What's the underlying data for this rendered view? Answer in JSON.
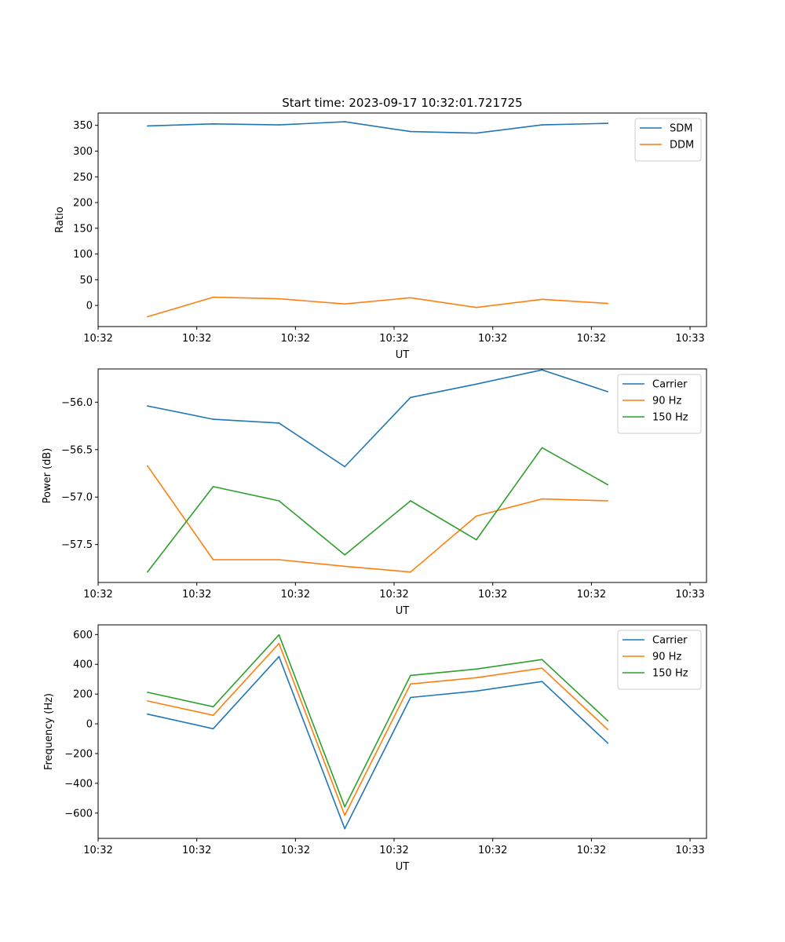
{
  "chart_data": [
    {
      "type": "line",
      "title": "Start time: 2023-09-17 10:32:01.721725",
      "xlabel": "UT",
      "ylabel": "Ratio",
      "xlim": [
        0,
        9.25
      ],
      "ylim": [
        -41,
        374
      ],
      "yticks": [
        0,
        50,
        100,
        150,
        200,
        250,
        300,
        350
      ],
      "xticks": [
        0,
        1.5,
        3,
        4.5,
        6,
        7.5,
        9
      ],
      "xtick_labels": [
        "10:32",
        "10:32",
        "10:32",
        "10:32",
        "10:32",
        "10:32",
        "10:33"
      ],
      "x": [
        0.75,
        1.75,
        2.75,
        3.75,
        4.75,
        5.75,
        6.75,
        7.75
      ],
      "legend_position": "upper right",
      "series": [
        {
          "name": "SDM",
          "color": "#1f77b4",
          "values": [
            349,
            353,
            351,
            357,
            338,
            335,
            351,
            354
          ]
        },
        {
          "name": "DDM",
          "color": "#ff7f0e",
          "values": [
            -22,
            16,
            13,
            3,
            15,
            -4,
            12,
            4
          ]
        }
      ]
    },
    {
      "type": "line",
      "title": "",
      "xlabel": "UT",
      "ylabel": "Power (dB)",
      "xlim": [
        0,
        9.25
      ],
      "ylim": [
        -57.9,
        -55.65
      ],
      "yticks": [
        -56.0,
        -56.5,
        -57.0,
        -57.5
      ],
      "ytick_labels": [
        "−56.0",
        "−56.5",
        "−57.0",
        "−57.5"
      ],
      "xticks": [
        0,
        1.5,
        3,
        4.5,
        6,
        7.5,
        9
      ],
      "xtick_labels": [
        "10:32",
        "10:32",
        "10:32",
        "10:32",
        "10:32",
        "10:32",
        "10:33"
      ],
      "x": [
        0.75,
        1.75,
        2.75,
        3.75,
        4.75,
        5.75,
        6.75,
        7.75
      ],
      "legend_position": "upper right",
      "series": [
        {
          "name": "Carrier",
          "color": "#1f77b4",
          "values": [
            -56.04,
            -56.18,
            -56.22,
            -56.68,
            -55.95,
            -55.81,
            -55.66,
            -55.89
          ]
        },
        {
          "name": "90 Hz",
          "color": "#ff7f0e",
          "values": [
            -56.67,
            -57.66,
            -57.66,
            -57.73,
            -57.79,
            -57.2,
            -57.02,
            -57.04
          ]
        },
        {
          "name": "150 Hz",
          "color": "#2ca02c",
          "values": [
            -57.79,
            -56.89,
            -57.04,
            -57.61,
            -57.04,
            -57.45,
            -56.48,
            -56.87
          ]
        }
      ]
    },
    {
      "type": "line",
      "title": "",
      "xlabel": "UT",
      "ylabel": "Frequency (Hz)",
      "xlim": [
        0,
        9.25
      ],
      "ylim": [
        -770,
        665
      ],
      "yticks": [
        600,
        400,
        200,
        0,
        -200,
        -400,
        -600
      ],
      "ytick_labels": [
        "600",
        "400",
        "200",
        "0",
        "−200",
        "−400",
        "−600"
      ],
      "xticks": [
        0,
        1.5,
        3,
        4.5,
        6,
        7.5,
        9
      ],
      "xtick_labels": [
        "10:32",
        "10:32",
        "10:32",
        "10:32",
        "10:32",
        "10:32",
        "10:33"
      ],
      "x": [
        0.75,
        1.75,
        2.75,
        3.75,
        4.75,
        5.75,
        6.75,
        7.75
      ],
      "legend_position": "upper right",
      "series": [
        {
          "name": "Carrier",
          "color": "#1f77b4",
          "values": [
            65,
            -33,
            452,
            -705,
            177,
            220,
            284,
            -130
          ]
        },
        {
          "name": "90 Hz",
          "color": "#ff7f0e",
          "values": [
            154,
            57,
            540,
            -615,
            268,
            310,
            374,
            -39
          ]
        },
        {
          "name": "150 Hz",
          "color": "#2ca02c",
          "values": [
            212,
            115,
            598,
            -558,
            325,
            368,
            432,
            20
          ]
        }
      ]
    }
  ]
}
